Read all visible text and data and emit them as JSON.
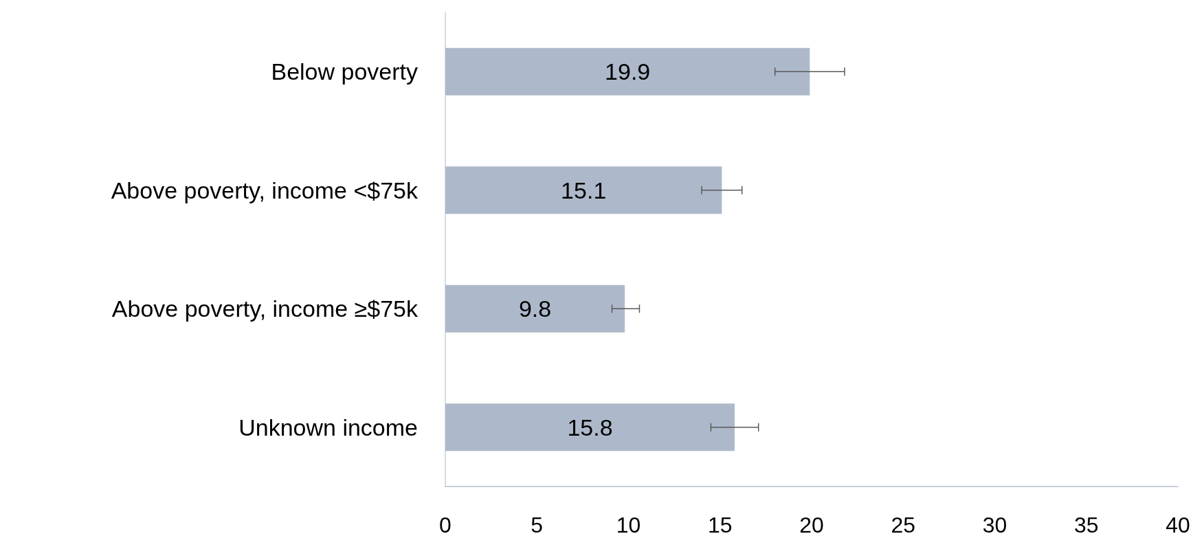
{
  "chart_data": {
    "type": "bar",
    "orientation": "horizontal",
    "categories": [
      "Below poverty",
      "Above poverty, income <$75k",
      "Above poverty, income ≥$75k",
      "Unknown income"
    ],
    "values": [
      19.9,
      15.1,
      9.8,
      15.8
    ],
    "errors": [
      [
        18.0,
        21.8
      ],
      [
        14.0,
        16.2
      ],
      [
        9.1,
        10.6
      ],
      [
        14.5,
        17.1
      ]
    ],
    "color": "#adb9ca",
    "data_labels": true,
    "grid": false,
    "xlim": [
      0,
      40
    ],
    "xticks": [
      0,
      5,
      10,
      15,
      20,
      25,
      30,
      35,
      40
    ]
  }
}
